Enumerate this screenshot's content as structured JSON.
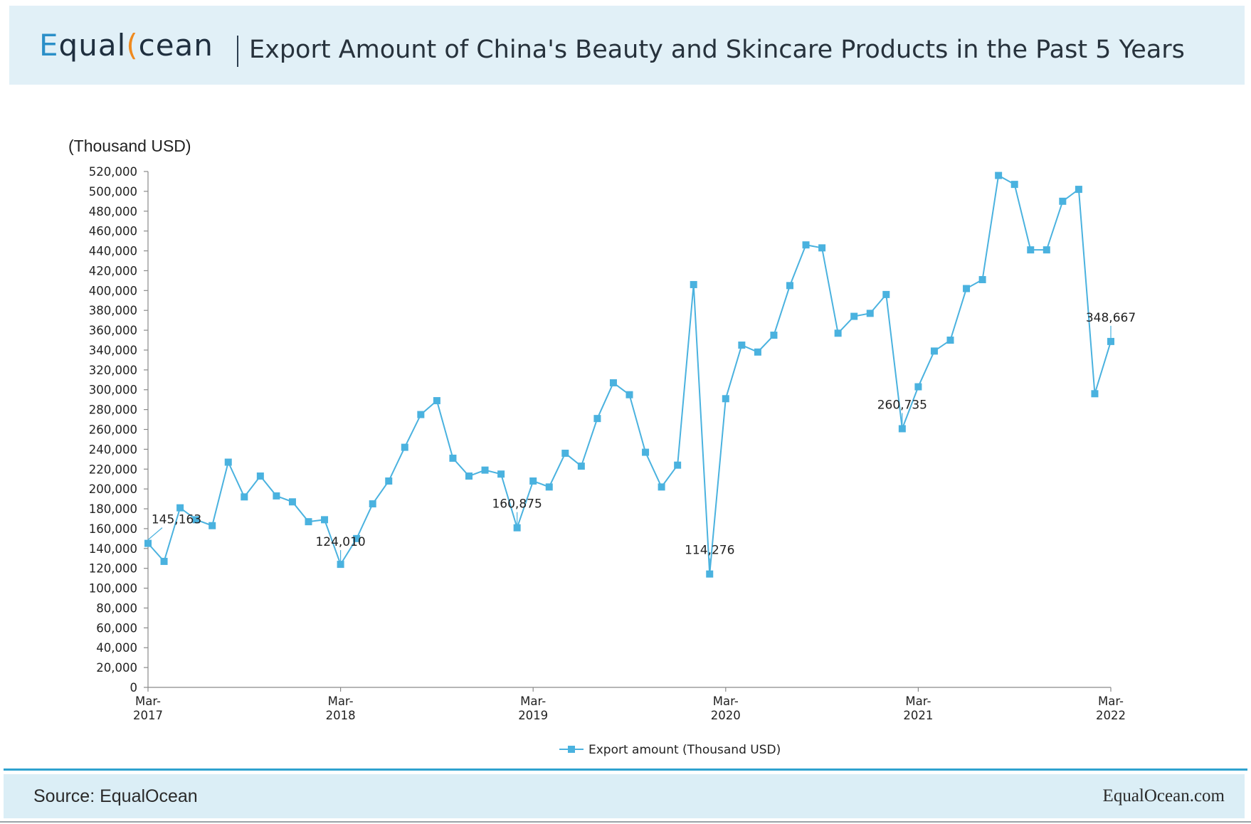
{
  "header": {
    "logo_text": "EqualOcean",
    "title": "Export Amount of China's Beauty and Skincare Products in the Past 5 Years"
  },
  "footer": {
    "source": "Source: EqualOcean",
    "site": "EqualOcean.com"
  },
  "colors": {
    "series": "#4ab2df",
    "header_bg": "#e1f0f7",
    "footer_bg": "#dbeef6",
    "accent_rule": "#2fa2cf",
    "logo_blue": "#2a8fc8",
    "logo_orange": "#ef8a1f"
  },
  "chart_data": {
    "type": "line",
    "unit_label": "(Thousand USD)",
    "ylim": [
      0,
      520000
    ],
    "y_tick_step": 20000,
    "x_tick_labels": [
      {
        "month": "Mar-",
        "year": "2017"
      },
      {
        "month": "Mar-",
        "year": "2018"
      },
      {
        "month": "Mar-",
        "year": "2019"
      },
      {
        "month": "Mar-",
        "year": "2020"
      },
      {
        "month": "Mar-",
        "year": "2021"
      },
      {
        "month": "Mar-",
        "year": "2022"
      }
    ],
    "x_tick_dates": [
      "2017-03",
      "2018-03",
      "2019-03",
      "2020-03",
      "2021-03",
      "2022-03"
    ],
    "x": [
      "2017-03",
      "2017-04",
      "2017-05",
      "2017-06",
      "2017-07",
      "2017-08",
      "2017-09",
      "2017-10",
      "2017-11",
      "2017-12",
      "2018-01",
      "2018-02",
      "2018-03",
      "2018-04",
      "2018-05",
      "2018-06",
      "2018-07",
      "2018-08",
      "2018-09",
      "2018-10",
      "2018-11",
      "2018-12",
      "2019-01",
      "2019-02",
      "2019-03",
      "2019-04",
      "2019-05",
      "2019-06",
      "2019-07",
      "2019-08",
      "2019-09",
      "2019-10",
      "2019-11",
      "2019-12",
      "2020-01",
      "2020-02",
      "2020-03",
      "2020-04",
      "2020-05",
      "2020-06",
      "2020-07",
      "2020-08",
      "2020-09",
      "2020-10",
      "2020-11",
      "2020-12",
      "2021-01",
      "2021-02",
      "2021-03",
      "2021-04",
      "2021-05",
      "2021-06",
      "2021-07",
      "2021-08",
      "2021-09",
      "2021-10",
      "2021-11",
      "2021-12",
      "2022-01",
      "2022-02",
      "2022-03"
    ],
    "series": [
      {
        "name": "Export amount (Thousand USD)",
        "values": [
          145163,
          127000,
          181000,
          169000,
          163000,
          227000,
          192000,
          213000,
          193000,
          187000,
          167000,
          169000,
          124010,
          150000,
          185000,
          208000,
          242000,
          275000,
          289000,
          231000,
          213000,
          219000,
          215000,
          160875,
          208000,
          202000,
          236000,
          223000,
          271000,
          307000,
          295000,
          237000,
          202000,
          224000,
          406000,
          114276,
          291000,
          345000,
          338000,
          355000,
          405000,
          446000,
          443000,
          357000,
          374000,
          377000,
          396000,
          260735,
          303000,
          339000,
          350000,
          402000,
          411000,
          516000,
          507000,
          441000,
          441000,
          490000,
          502000,
          296000,
          348667
        ]
      }
    ],
    "data_labels": [
      {
        "x": "2017-03",
        "label": "145,163"
      },
      {
        "x": "2018-03",
        "label": "124,010"
      },
      {
        "x": "2019-02",
        "label": "160,875"
      },
      {
        "x": "2020-02",
        "label": "114,276"
      },
      {
        "x": "2021-02",
        "label": "260,735"
      },
      {
        "x": "2022-03",
        "label": "348,667"
      }
    ],
    "grid": false,
    "legend_position": "bottom-center"
  }
}
